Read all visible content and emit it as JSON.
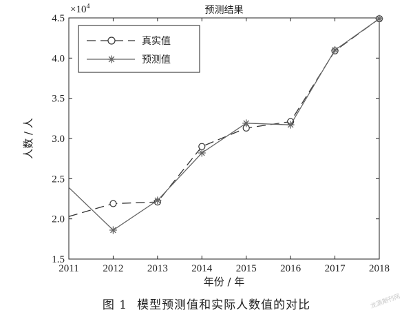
{
  "chart_data": {
    "type": "line",
    "title": "预测结果",
    "xlabel": "年份 / 年",
    "ylabel": "人数 / 人",
    "y_multiplier_label": "×10",
    "y_multiplier_exponent": "4",
    "x": [
      2011,
      2012,
      2013,
      2014,
      2015,
      2016,
      2017,
      2018
    ],
    "xlim": [
      2011,
      2018
    ],
    "ylim": [
      1.5,
      4.5
    ],
    "x_ticks": [
      "2011",
      "2012",
      "2013",
      "2014",
      "2015",
      "2016",
      "2017",
      "2018"
    ],
    "y_ticks": [
      "1.5",
      "2.0",
      "2.5",
      "3.0",
      "3.5",
      "4.0",
      "4.5"
    ],
    "legend_position": "top-left",
    "grid": false,
    "series": [
      {
        "name": "真实值",
        "style": "dashed-circle",
        "color": "#333333",
        "x": [
          2011,
          2012,
          2013,
          2014,
          2015,
          2016,
          2017,
          2018
        ],
        "values": [
          2.03,
          2.19,
          2.21,
          2.9,
          3.13,
          3.21,
          4.09,
          4.49
        ]
      },
      {
        "name": "预测值",
        "style": "solid-star",
        "color": "#666666",
        "x": [
          2011,
          2012,
          2013,
          2014,
          2015,
          2016,
          2017,
          2018
        ],
        "values": [
          2.39,
          1.86,
          2.23,
          2.82,
          3.19,
          3.17,
          4.1,
          4.49
        ]
      }
    ]
  },
  "caption": {
    "figure_no": "图 1",
    "text": "模型预测值和实际人数值的对比"
  },
  "watermark": "龙源期刊网"
}
